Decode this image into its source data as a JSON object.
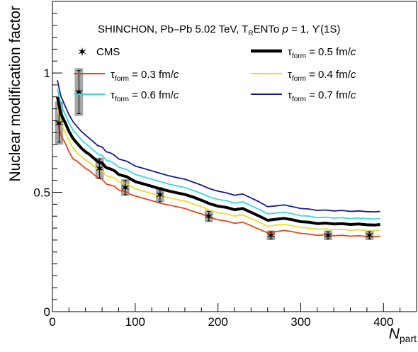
{
  "chart_data": {
    "type": "line",
    "ylabel": "Nuclear modification factor",
    "xlabel_main": "N",
    "xlabel_sub": "part",
    "xlim": [
      0,
      440
    ],
    "ylim": [
      0,
      1.3
    ],
    "x_ticks": [
      0,
      100,
      200,
      300,
      400
    ],
    "x_tick_labels": [
      "0",
      "100",
      "200",
      "300",
      "400"
    ],
    "y_ticks": [
      0,
      0.5,
      1
    ],
    "y_tick_labels": [
      "0",
      "0.5",
      "1"
    ],
    "header": {
      "part1": "SHINCHON, Pb–Pb 5.02 TeV, T",
      "sub": "R",
      "part2": "ENTo ",
      "p_symbol": "p",
      "part3": " = 1, ϒ(1S)"
    },
    "legend": [
      {
        "label_pre": "CMS",
        "label_sub": "",
        "label_post": "",
        "unit": "",
        "color": "#000000",
        "kind": "marker"
      },
      {
        "label_pre": "τ",
        "label_sub": "form",
        "label_post": " = 0.5 fm/",
        "unit": "c",
        "color": "#000000",
        "kind": "line-thick"
      },
      {
        "label_pre": "τ",
        "label_sub": "form",
        "label_post": " = 0.3 fm/",
        "unit": "c",
        "color": "#e8471a",
        "kind": "line"
      },
      {
        "label_pre": "τ",
        "label_sub": "form",
        "label_post": " = 0.4 fm/",
        "unit": "c",
        "color": "#e5e02a",
        "kind": "line"
      },
      {
        "label_pre": "τ",
        "label_sub": "form",
        "label_post": " = 0.6 fm/",
        "unit": "c",
        "color": "#3cd7dd",
        "kind": "line"
      },
      {
        "label_pre": "τ",
        "label_sub": "form",
        "label_post": " = 0.7 fm/",
        "unit": "c",
        "color": "#1a1a8c",
        "kind": "line"
      }
    ],
    "series": [
      {
        "name": "τform = 0.3 fm/c",
        "color": "#e8471a",
        "width": 1.8,
        "x": [
          6,
          10,
          15,
          20,
          25,
          30,
          35,
          40,
          45,
          50,
          55,
          60,
          65,
          70,
          75,
          80,
          85,
          90,
          95,
          100,
          110,
          120,
          130,
          140,
          150,
          160,
          170,
          180,
          190,
          200,
          210,
          220,
          230,
          240,
          250,
          260,
          270,
          280,
          290,
          300,
          310,
          320,
          330,
          340,
          350,
          360,
          370,
          380,
          390,
          396
        ],
        "y": [
          0.8,
          0.74,
          0.71,
          0.67,
          0.64,
          0.63,
          0.615,
          0.6,
          0.59,
          0.575,
          0.56,
          0.555,
          0.535,
          0.53,
          0.525,
          0.51,
          0.505,
          0.5,
          0.49,
          0.485,
          0.475,
          0.465,
          0.455,
          0.447,
          0.44,
          0.432,
          0.42,
          0.41,
          0.395,
          0.385,
          0.38,
          0.37,
          0.375,
          0.36,
          0.345,
          0.33,
          0.335,
          0.34,
          0.335,
          0.328,
          0.325,
          0.32,
          0.322,
          0.318,
          0.32,
          0.316,
          0.318,
          0.315,
          0.314,
          0.316
        ]
      },
      {
        "name": "τform = 0.4 fm/c",
        "color": "#e5e02a",
        "width": 1.8,
        "x": [
          6,
          10,
          15,
          20,
          25,
          30,
          35,
          40,
          45,
          50,
          55,
          60,
          65,
          70,
          75,
          80,
          85,
          90,
          95,
          100,
          110,
          120,
          130,
          140,
          150,
          160,
          170,
          180,
          190,
          200,
          210,
          220,
          230,
          240,
          250,
          260,
          270,
          280,
          290,
          300,
          310,
          320,
          330,
          340,
          350,
          360,
          370,
          380,
          390,
          396
        ],
        "y": [
          0.855,
          0.79,
          0.755,
          0.715,
          0.685,
          0.665,
          0.65,
          0.635,
          0.625,
          0.61,
          0.595,
          0.59,
          0.57,
          0.565,
          0.56,
          0.545,
          0.54,
          0.535,
          0.525,
          0.515,
          0.505,
          0.495,
          0.485,
          0.478,
          0.47,
          0.463,
          0.452,
          0.44,
          0.425,
          0.415,
          0.41,
          0.4,
          0.405,
          0.39,
          0.375,
          0.358,
          0.362,
          0.366,
          0.36,
          0.353,
          0.35,
          0.345,
          0.347,
          0.343,
          0.345,
          0.341,
          0.343,
          0.34,
          0.339,
          0.341
        ]
      },
      {
        "name": "τform = 0.6 fm/c",
        "color": "#3cd7dd",
        "width": 1.8,
        "x": [
          6,
          10,
          15,
          20,
          25,
          30,
          35,
          40,
          45,
          50,
          55,
          60,
          65,
          70,
          75,
          80,
          85,
          90,
          95,
          100,
          110,
          120,
          130,
          140,
          150,
          160,
          170,
          180,
          190,
          200,
          210,
          220,
          230,
          240,
          250,
          260,
          270,
          280,
          290,
          300,
          310,
          320,
          330,
          340,
          350,
          360,
          370,
          380,
          390,
          396
        ],
        "y": [
          0.935,
          0.87,
          0.83,
          0.79,
          0.76,
          0.74,
          0.72,
          0.705,
          0.69,
          0.675,
          0.66,
          0.655,
          0.635,
          0.63,
          0.62,
          0.605,
          0.6,
          0.595,
          0.585,
          0.575,
          0.565,
          0.555,
          0.545,
          0.535,
          0.527,
          0.52,
          0.508,
          0.495,
          0.48,
          0.47,
          0.465,
          0.455,
          0.46,
          0.444,
          0.428,
          0.41,
          0.413,
          0.417,
          0.41,
          0.402,
          0.4,
          0.394,
          0.396,
          0.392,
          0.394,
          0.39,
          0.392,
          0.389,
          0.388,
          0.39
        ]
      },
      {
        "name": "τform = 0.7 fm/c",
        "color": "#1a1a8c",
        "width": 1.8,
        "x": [
          6,
          10,
          15,
          20,
          25,
          30,
          35,
          40,
          45,
          50,
          55,
          60,
          65,
          70,
          75,
          80,
          85,
          90,
          95,
          100,
          110,
          120,
          130,
          140,
          150,
          160,
          170,
          180,
          190,
          200,
          210,
          220,
          230,
          240,
          250,
          260,
          270,
          280,
          290,
          300,
          310,
          320,
          330,
          340,
          350,
          360,
          370,
          380,
          390,
          396
        ],
        "y": [
          0.97,
          0.905,
          0.865,
          0.825,
          0.795,
          0.775,
          0.755,
          0.74,
          0.725,
          0.71,
          0.695,
          0.69,
          0.67,
          0.665,
          0.655,
          0.64,
          0.635,
          0.63,
          0.62,
          0.61,
          0.6,
          0.59,
          0.58,
          0.57,
          0.562,
          0.555,
          0.543,
          0.53,
          0.515,
          0.505,
          0.498,
          0.488,
          0.493,
          0.476,
          0.46,
          0.44,
          0.443,
          0.447,
          0.44,
          0.432,
          0.43,
          0.424,
          0.426,
          0.422,
          0.424,
          0.42,
          0.422,
          0.419,
          0.418,
          0.42
        ]
      },
      {
        "name": "τform = 0.5 fm/c",
        "color": "#000000",
        "width": 4,
        "x": [
          6,
          10,
          15,
          20,
          25,
          30,
          35,
          40,
          45,
          50,
          55,
          60,
          65,
          70,
          75,
          80,
          85,
          90,
          95,
          100,
          110,
          120,
          130,
          140,
          150,
          160,
          170,
          180,
          190,
          200,
          210,
          220,
          230,
          240,
          250,
          260,
          270,
          280,
          290,
          300,
          310,
          320,
          330,
          340,
          350,
          360,
          370,
          380,
          390,
          396
        ],
        "y": [
          0.9,
          0.83,
          0.795,
          0.755,
          0.725,
          0.705,
          0.685,
          0.67,
          0.658,
          0.643,
          0.628,
          0.623,
          0.603,
          0.598,
          0.59,
          0.575,
          0.57,
          0.565,
          0.555,
          0.545,
          0.535,
          0.525,
          0.515,
          0.506,
          0.498,
          0.491,
          0.48,
          0.467,
          0.452,
          0.442,
          0.437,
          0.427,
          0.432,
          0.416,
          0.4,
          0.383,
          0.387,
          0.391,
          0.385,
          0.377,
          0.375,
          0.369,
          0.371,
          0.367,
          0.369,
          0.365,
          0.367,
          0.364,
          0.363,
          0.365
        ]
      }
    ],
    "cms_points": [
      {
        "x": 8,
        "y": 0.79,
        "err": 0.08,
        "syst": 0.09,
        "bw": 5
      },
      {
        "x": 32,
        "y": 0.92,
        "err": 0.09,
        "syst": 0.1,
        "bw": 5
      },
      {
        "x": 57,
        "y": 0.6,
        "err": 0.04,
        "syst": 0.045,
        "bw": 5
      },
      {
        "x": 88,
        "y": 0.52,
        "err": 0.03,
        "syst": 0.035,
        "bw": 5
      },
      {
        "x": 130,
        "y": 0.49,
        "err": 0.03,
        "syst": 0.03,
        "bw": 5
      },
      {
        "x": 189,
        "y": 0.4,
        "err": 0.02,
        "syst": 0.025,
        "bw": 5
      },
      {
        "x": 264,
        "y": 0.32,
        "err": 0.015,
        "syst": 0.02,
        "bw": 5
      },
      {
        "x": 333,
        "y": 0.32,
        "err": 0.015,
        "syst": 0.02,
        "bw": 5
      },
      {
        "x": 383,
        "y": 0.32,
        "err": 0.015,
        "syst": 0.02,
        "bw": 5
      }
    ]
  }
}
